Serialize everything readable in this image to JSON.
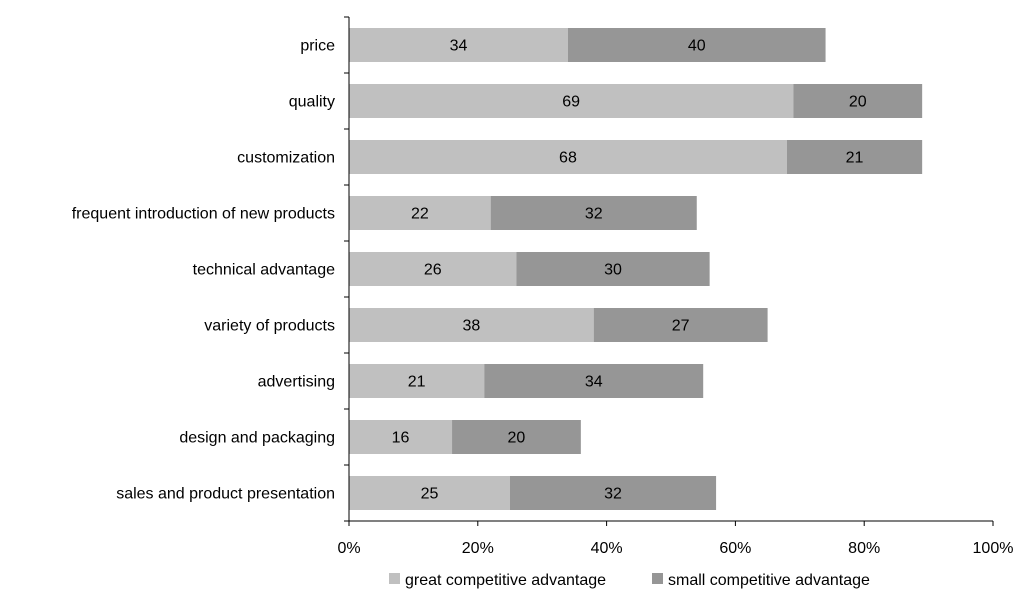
{
  "chart_data": {
    "type": "bar",
    "orientation": "horizontal",
    "stacked": true,
    "categories": [
      "price",
      "quality",
      "customization",
      "frequent introduction of new products",
      "technical advantage",
      "variety of products",
      "advertising",
      "design and packaging",
      "sales and product presentation"
    ],
    "series": [
      {
        "name": "great competitive advantage",
        "color": "#c0c0c0",
        "values": [
          34,
          69,
          68,
          22,
          26,
          38,
          21,
          16,
          25
        ]
      },
      {
        "name": "small competitive advantage",
        "color": "#969696",
        "values": [
          40,
          20,
          21,
          32,
          30,
          27,
          34,
          20,
          32
        ]
      }
    ],
    "xlim": [
      0,
      100
    ],
    "xticks": [
      "0%",
      "20%",
      "40%",
      "60%",
      "80%",
      "100%"
    ],
    "xtick_values": [
      0,
      20,
      40,
      60,
      80,
      100
    ],
    "grid": false,
    "legend": "bottom"
  }
}
